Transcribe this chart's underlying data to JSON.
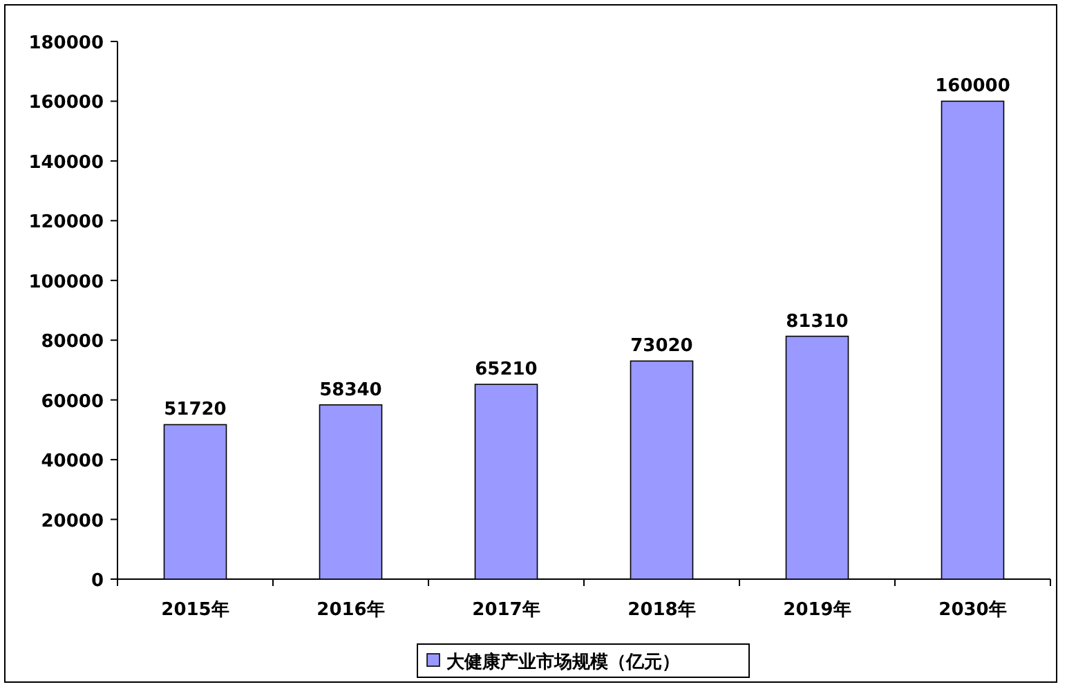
{
  "chart_data": {
    "type": "bar",
    "categories": [
      "2015年",
      "2016年",
      "2017年",
      "2018年",
      "2019年",
      "2030年"
    ],
    "series": [
      {
        "name": "大健康产业市场规模（亿元）",
        "color": "#9999ff",
        "values": [
          51720,
          58340,
          65210,
          73020,
          81310,
          160000
        ]
      }
    ],
    "ylim": [
      0,
      180000
    ],
    "yticks": [
      0,
      20000,
      40000,
      60000,
      80000,
      100000,
      120000,
      140000,
      160000,
      180000
    ],
    "data_labels": true,
    "legend": "bottom"
  }
}
